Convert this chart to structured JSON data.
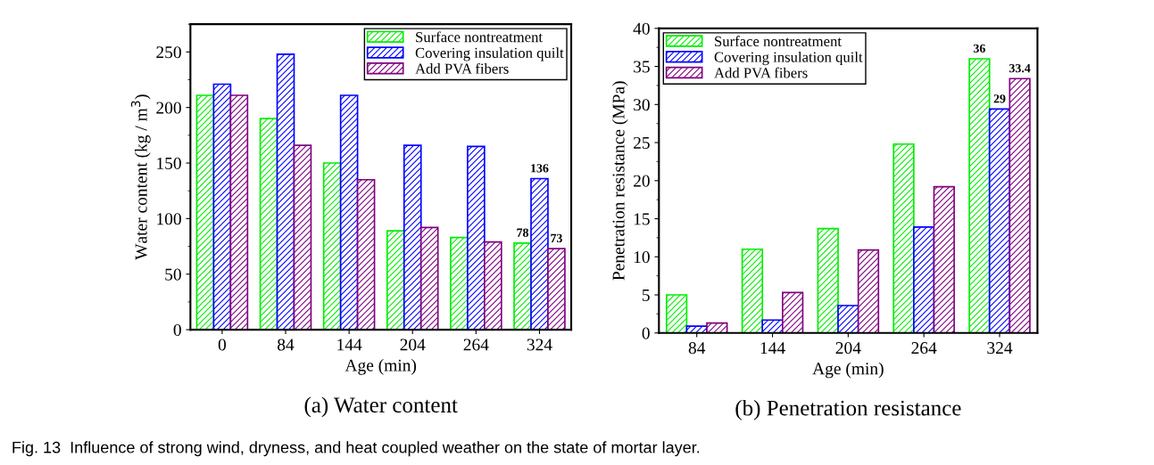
{
  "chart_data": [
    {
      "type": "bar",
      "title": "(a) Water content",
      "xlabel": "Age (min)",
      "ylabel": "Water content (kg / m$^{3}$)",
      "categories": [
        "0",
        "84",
        "144",
        "204",
        "264",
        "324"
      ],
      "series": [
        {
          "name": "Surface nontreatment",
          "color": "#00ee00",
          "values": [
            211,
            190,
            150,
            89,
            83,
            78
          ],
          "value_labels": [
            null,
            null,
            null,
            null,
            null,
            "78"
          ]
        },
        {
          "name": "Covering insulation quilt",
          "color": "#0000ff",
          "values": [
            221,
            248,
            211,
            166,
            165,
            136
          ],
          "value_labels": [
            null,
            null,
            null,
            null,
            null,
            "136"
          ]
        },
        {
          "name": "Add PVA fibers",
          "color": "#800080",
          "values": [
            211,
            166,
            135,
            92,
            79,
            73
          ],
          "value_labels": [
            null,
            null,
            null,
            null,
            null,
            "73"
          ]
        }
      ],
      "ylim": [
        0,
        275
      ],
      "yticks": [
        0,
        50,
        100,
        150,
        200,
        250
      ],
      "legend": "top right",
      "grid": false,
      "annotations": [
        "Fig. 13  Influence of strong wind, dryness, and heat coupled weather on the state of mortar layer."
      ]
    },
    {
      "type": "bar",
      "title": "(b) Penetration resistance",
      "xlabel": "Age (min)",
      "ylabel": "Penetration resistance (MPa)",
      "categories": [
        "84",
        "144",
        "204",
        "264",
        "324"
      ],
      "series": [
        {
          "name": "Surface nontreatment",
          "color": "#00ee00",
          "values": [
            5.0,
            11.0,
            13.7,
            24.8,
            36.0
          ],
          "value_labels": [
            null,
            null,
            null,
            null,
            "36"
          ]
        },
        {
          "name": "Covering insulation quilt",
          "color": "#0000ff",
          "values": [
            0.9,
            1.7,
            3.6,
            13.9,
            29.4
          ],
          "value_labels": [
            null,
            null,
            null,
            null,
            "29"
          ]
        },
        {
          "name": "Add PVA fibers",
          "color": "#800080",
          "values": [
            1.3,
            5.3,
            10.9,
            19.2,
            33.4
          ],
          "value_labels": [
            null,
            null,
            null,
            null,
            "33.4"
          ]
        }
      ],
      "ylim": [
        0,
        40
      ],
      "yticks": [
        0,
        5,
        10,
        15,
        20,
        25,
        30,
        35,
        40
      ],
      "legend": "top left",
      "grid": false
    }
  ]
}
